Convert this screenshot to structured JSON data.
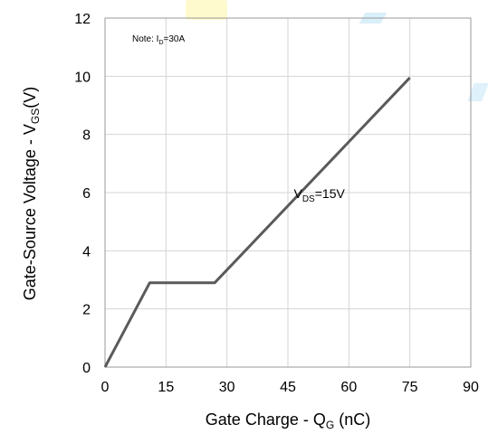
{
  "chart_data": {
    "type": "line",
    "xlabel": {
      "main": "Gate Charge - Q",
      "sub": "G",
      "unit": " (nC)"
    },
    "ylabel": {
      "main": "Gate-Source Voltage - V",
      "sub": "GS",
      "unit": "(V)"
    },
    "xlim": [
      0,
      90
    ],
    "ylim": [
      0,
      12
    ],
    "xticks": [
      0,
      15,
      30,
      45,
      60,
      75,
      90
    ],
    "yticks": [
      0,
      2,
      4,
      6,
      8,
      10,
      12
    ],
    "grid": true,
    "series": [
      {
        "name": "",
        "color": "#5a5a5a",
        "x": [
          0,
          11,
          27,
          75
        ],
        "y": [
          0,
          2.9,
          2.9,
          9.95
        ]
      }
    ],
    "annotations": [
      {
        "main": "V",
        "sub": "DS",
        "rest": "=15V",
        "x": 46,
        "y": 5.0
      }
    ],
    "note": {
      "prefix": "Note:  I",
      "sub": "D",
      "rest": "=30A"
    }
  }
}
